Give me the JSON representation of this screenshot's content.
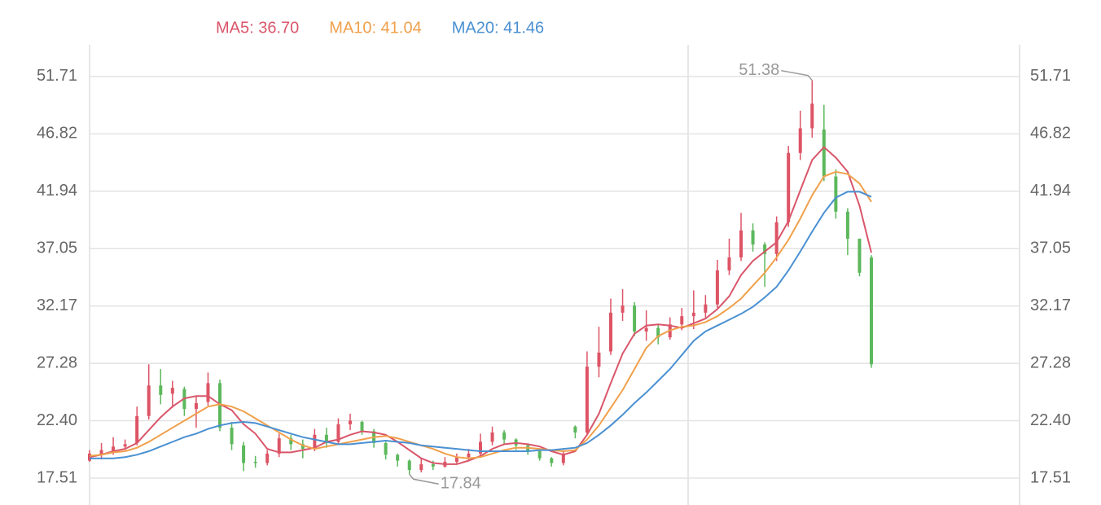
{
  "chart_data": {
    "type": "candlestick",
    "open": [
      19.0,
      19.5,
      19.8,
      20.2,
      20.5,
      22.8,
      25.4,
      24.7,
      25.1,
      23.4,
      24.0,
      25.6,
      21.8,
      20.3,
      18.9,
      18.8,
      19.6,
      20.9,
      20.4,
      20.0,
      21.2,
      20.6,
      22.1,
      22.3,
      21.5,
      20.5,
      19.5,
      19.0,
      18.2,
      18.7,
      18.5,
      18.9,
      19.3,
      19.6,
      20.6,
      21.4,
      20.8,
      20.3,
      19.8,
      19.2,
      18.8,
      21.9,
      21.4,
      27.0,
      28.3,
      31.6,
      32.2,
      30.0,
      30.3,
      29.5,
      30.6,
      31.3,
      31.6,
      32.3,
      35.2,
      36.3,
      38.6,
      37.4,
      36.6,
      39.3,
      45.2,
      47.3,
      47.2,
      43.2,
      40.2,
      37.9,
      36.3
    ],
    "close": [
      19.6,
      19.9,
      20.2,
      20.4,
      22.8,
      25.4,
      24.6,
      25.2,
      23.4,
      23.9,
      25.6,
      21.8,
      20.4,
      18.8,
      18.8,
      19.6,
      20.9,
      20.4,
      20.0,
      21.2,
      20.5,
      22.1,
      22.4,
      21.5,
      20.5,
      19.5,
      19.0,
      18.2,
      18.7,
      18.5,
      18.9,
      19.3,
      19.6,
      20.6,
      21.4,
      20.8,
      20.3,
      19.8,
      19.2,
      18.8,
      19.6,
      21.4,
      27.0,
      28.2,
      31.6,
      32.2,
      30.0,
      30.3,
      29.5,
      30.6,
      31.3,
      31.6,
      32.3,
      35.2,
      36.3,
      38.6,
      37.4,
      36.6,
      39.3,
      45.2,
      47.3,
      49.4,
      43.2,
      40.2,
      37.9,
      35.0,
      27.2
    ],
    "low": [
      18.9,
      19.1,
      19.5,
      19.9,
      20.3,
      22.5,
      23.8,
      23.5,
      22.8,
      21.8,
      23.7,
      21.5,
      19.9,
      18.1,
      18.4,
      18.6,
      19.3,
      19.9,
      19.2,
      19.8,
      20.1,
      20.4,
      21.6,
      21.2,
      20.1,
      19.1,
      18.5,
      17.84,
      18.0,
      18.2,
      18.4,
      18.7,
      19.0,
      19.4,
      20.3,
      20.4,
      19.9,
      19.5,
      19.0,
      18.5,
      18.6,
      20.9,
      21.2,
      26.1,
      28.0,
      30.9,
      29.6,
      29.2,
      28.9,
      29.3,
      30.1,
      30.2,
      31.2,
      32.0,
      34.8,
      36.0,
      36.8,
      33.8,
      36.0,
      38.9,
      44.6,
      46.5,
      42.8,
      39.6,
      36.5,
      34.7,
      26.9
    ],
    "high": [
      19.9,
      20.5,
      21.0,
      20.8,
      23.6,
      27.2,
      26.8,
      25.8,
      25.3,
      24.5,
      26.5,
      25.9,
      22.3,
      20.6,
      19.4,
      19.9,
      21.3,
      21.2,
      20.8,
      21.7,
      21.8,
      22.6,
      23.0,
      22.4,
      21.7,
      20.6,
      19.6,
      19.1,
      19.2,
      19.0,
      19.3,
      19.6,
      20.0,
      21.3,
      21.9,
      21.6,
      20.9,
      20.4,
      19.9,
      19.3,
      19.9,
      22.0,
      28.3,
      30.4,
      32.8,
      33.6,
      32.5,
      31.8,
      30.6,
      31.2,
      32.0,
      33.5,
      33.1,
      36.1,
      37.9,
      40.1,
      39.2,
      37.6,
      39.8,
      45.8,
      48.8,
      51.38,
      49.3,
      43.8,
      40.5,
      37.9,
      36.5
    ],
    "up_color": "#dd5465",
    "down_color": "#5cb85c",
    "series": [
      {
        "name": "MA5: 36.70",
        "color": "#d9566a",
        "values": [
          19.3,
          19.5,
          19.8,
          20.0,
          20.5,
          21.6,
          22.7,
          23.6,
          24.3,
          24.5,
          24.5,
          23.8,
          23.3,
          22.1,
          21.3,
          20.0,
          19.7,
          19.7,
          19.9,
          20.1,
          20.6,
          20.8,
          21.2,
          21.5,
          21.4,
          21.2,
          20.6,
          19.9,
          19.2,
          18.8,
          18.7,
          18.7,
          19.0,
          19.4,
          20.0,
          20.4,
          20.5,
          20.4,
          20.2,
          19.8,
          19.5,
          19.8,
          21.2,
          23.0,
          25.6,
          28.1,
          29.8,
          30.5,
          30.6,
          30.5,
          30.3,
          30.7,
          31.1,
          31.9,
          33.0,
          34.8,
          36.0,
          36.8,
          37.6,
          39.4,
          42.0,
          44.6,
          45.7,
          44.8,
          43.6,
          40.7,
          36.7
        ]
      },
      {
        "name": "MA10: 41.04",
        "color": "#f0a04b",
        "values": [
          19.4,
          19.5,
          19.7,
          19.8,
          20.1,
          20.6,
          21.2,
          21.8,
          22.4,
          23.0,
          23.6,
          23.8,
          23.6,
          23.2,
          22.6,
          22.0,
          21.4,
          20.8,
          20.3,
          20.0,
          20.2,
          20.4,
          20.6,
          20.8,
          21.0,
          21.1,
          20.9,
          20.6,
          20.3,
          20.0,
          19.6,
          19.3,
          19.2,
          19.3,
          19.6,
          19.9,
          20.1,
          20.1,
          20.0,
          19.9,
          19.8,
          19.9,
          20.8,
          22.0,
          23.5,
          25.0,
          26.8,
          28.6,
          29.6,
          30.1,
          30.4,
          30.5,
          30.8,
          31.3,
          32.0,
          32.8,
          33.9,
          35.0,
          36.3,
          37.8,
          39.6,
          41.6,
          43.2,
          43.6,
          43.4,
          42.6,
          41.04
        ]
      },
      {
        "name": "MA20: 41.46",
        "color": "#4a90d2",
        "values": [
          19.2,
          19.2,
          19.2,
          19.3,
          19.5,
          19.8,
          20.2,
          20.6,
          21.0,
          21.3,
          21.7,
          22.0,
          22.2,
          22.3,
          22.2,
          21.9,
          21.6,
          21.3,
          21.0,
          20.8,
          20.6,
          20.4,
          20.4,
          20.5,
          20.6,
          20.7,
          20.6,
          20.5,
          20.3,
          20.2,
          20.1,
          20.0,
          19.9,
          19.8,
          19.8,
          19.8,
          19.8,
          19.8,
          19.9,
          19.9,
          20.0,
          20.1,
          20.5,
          21.2,
          22.0,
          22.9,
          23.9,
          24.8,
          25.8,
          26.8,
          28.0,
          29.2,
          30.0,
          30.5,
          31.0,
          31.5,
          32.1,
          32.9,
          33.8,
          35.2,
          36.8,
          38.5,
          40.1,
          41.4,
          41.9,
          41.9,
          41.46
        ]
      }
    ],
    "ylim": [
      16.61,
      54.41
    ],
    "yticks": [
      17.51,
      {
        "value": 22.4,
        "label": "22.40"
      },
      27.28,
      32.17,
      37.05,
      41.94,
      46.82,
      51.71
    ],
    "grid": true
  }
}
